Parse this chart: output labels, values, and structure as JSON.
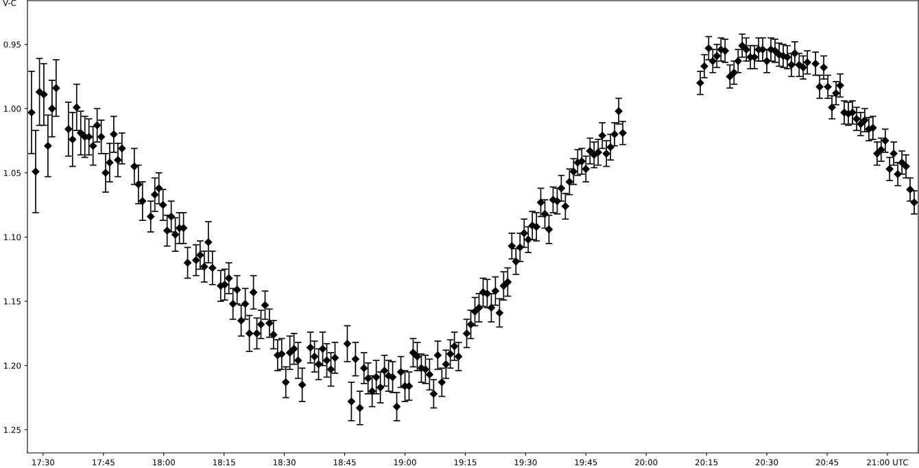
{
  "chart_data": {
    "type": "scatter",
    "ylabel": "V-C",
    "xlim": [
      17.435,
      21.128
    ],
    "ylim": [
      1.268,
      0.916
    ],
    "xticks": [
      {
        "value": 17.5,
        "label": "17:30"
      },
      {
        "value": 17.75,
        "label": "17:45"
      },
      {
        "value": 18.0,
        "label": "18:00"
      },
      {
        "value": 18.25,
        "label": "18:15"
      },
      {
        "value": 18.5,
        "label": "18:30"
      },
      {
        "value": 18.75,
        "label": "18:45"
      },
      {
        "value": 19.0,
        "label": "19:00"
      },
      {
        "value": 19.25,
        "label": "19:15"
      },
      {
        "value": 19.5,
        "label": "19:30"
      },
      {
        "value": 19.75,
        "label": "19:45"
      },
      {
        "value": 20.0,
        "label": "20:00"
      },
      {
        "value": 20.25,
        "label": "20:15"
      },
      {
        "value": 20.5,
        "label": "20:30"
      },
      {
        "value": 20.75,
        "label": "20:45"
      },
      {
        "value": 21.0,
        "label": "21:00 UTC"
      }
    ],
    "yticks": [
      {
        "value": 0.95,
        "label": "0.95"
      },
      {
        "value": 1.0,
        "label": "1.00"
      },
      {
        "value": 1.05,
        "label": "1.05"
      },
      {
        "value": 1.1,
        "label": "1.10"
      },
      {
        "value": 1.15,
        "label": "1.15"
      },
      {
        "value": 1.2,
        "label": "1.20"
      },
      {
        "value": 1.25,
        "label": "1.25"
      }
    ],
    "grid": false,
    "legend": false,
    "marker": "diamond",
    "series": [
      {
        "color": "#000000",
        "x": [
          17.452,
          17.469,
          17.485,
          17.503,
          17.52,
          17.537,
          17.554,
          17.605,
          17.622,
          17.639,
          17.656,
          17.673,
          17.69,
          17.707,
          17.724,
          17.741,
          17.759,
          17.776,
          17.793,
          17.81,
          17.827,
          17.878,
          17.895,
          17.912,
          17.946,
          17.963,
          17.98,
          17.997,
          18.014,
          18.031,
          18.048,
          18.065,
          18.082,
          18.099,
          18.134,
          18.151,
          18.168,
          18.185,
          18.202,
          18.236,
          18.253,
          18.27,
          18.287,
          18.304,
          18.321,
          18.338,
          18.355,
          18.372,
          18.386,
          18.403,
          18.42,
          18.438,
          18.455,
          18.472,
          18.489,
          18.506,
          18.523,
          18.54,
          18.557,
          18.574,
          18.608,
          18.625,
          18.642,
          18.659,
          18.676,
          18.693,
          18.71,
          18.761,
          18.778,
          18.795,
          18.813,
          18.83,
          18.847,
          18.864,
          18.881,
          18.898,
          18.915,
          18.932,
          18.949,
          18.966,
          18.983,
          19.0,
          19.017,
          19.034,
          19.051,
          19.068,
          19.085,
          19.102,
          19.119,
          19.136,
          19.153,
          19.17,
          19.188,
          19.205,
          19.222,
          19.256,
          19.273,
          19.29,
          19.307,
          19.324,
          19.341,
          19.358,
          19.375,
          19.392,
          19.409,
          19.426,
          19.443,
          19.46,
          19.477,
          19.494,
          19.511,
          19.528,
          19.545,
          19.563,
          19.58,
          19.597,
          19.614,
          19.631,
          19.648,
          19.665,
          19.682,
          19.699,
          19.716,
          19.733,
          19.75,
          19.767,
          19.784,
          19.801,
          19.818,
          19.835,
          19.852,
          19.869,
          19.886,
          19.903,
          20.224,
          20.241,
          20.259,
          20.276,
          20.293,
          20.31,
          20.327,
          20.347,
          20.364,
          20.381,
          20.398,
          20.415,
          20.432,
          20.449,
          20.466,
          20.483,
          20.5,
          20.517,
          20.534,
          20.551,
          20.568,
          20.585,
          20.602,
          20.616,
          20.634,
          20.651,
          20.668,
          20.702,
          20.719,
          20.736,
          20.753,
          20.77,
          20.787,
          20.804,
          20.821,
          20.838,
          20.855,
          20.872,
          20.889,
          20.906,
          20.923,
          20.94,
          20.957,
          20.974,
          20.991,
          21.009,
          21.026,
          21.043,
          21.06,
          21.077,
          21.094,
          21.111
        ],
        "values": [
          1.003,
          1.049,
          0.987,
          0.989,
          1.029,
          1.0,
          0.984,
          1.016,
          1.024,
          0.999,
          1.019,
          1.022,
          1.022,
          1.029,
          1.013,
          1.022,
          1.05,
          1.042,
          1.02,
          1.04,
          1.031,
          1.045,
          1.059,
          1.072,
          1.084,
          1.067,
          1.062,
          1.075,
          1.095,
          1.084,
          1.098,
          1.093,
          1.093,
          1.12,
          1.118,
          1.114,
          1.123,
          1.104,
          1.124,
          1.138,
          1.137,
          1.132,
          1.152,
          1.141,
          1.165,
          1.152,
          1.175,
          1.143,
          1.175,
          1.168,
          1.153,
          1.167,
          1.176,
          1.192,
          1.191,
          1.213,
          1.19,
          1.187,
          1.196,
          1.215,
          1.186,
          1.193,
          1.199,
          1.187,
          1.196,
          1.203,
          1.194,
          1.183,
          1.228,
          1.195,
          1.233,
          1.202,
          1.21,
          1.22,
          1.209,
          1.217,
          1.204,
          1.208,
          1.209,
          1.232,
          1.205,
          1.216,
          1.216,
          1.19,
          1.193,
          1.202,
          1.203,
          1.207,
          1.222,
          1.192,
          1.213,
          1.199,
          1.191,
          1.185,
          1.193,
          1.175,
          1.168,
          1.158,
          1.155,
          1.143,
          1.144,
          1.155,
          1.142,
          1.159,
          1.138,
          1.135,
          1.107,
          1.119,
          1.108,
          1.097,
          1.102,
          1.091,
          1.092,
          1.073,
          1.082,
          1.094,
          1.071,
          1.072,
          1.062,
          1.076,
          1.057,
          1.049,
          1.042,
          1.041,
          1.047,
          1.033,
          1.036,
          1.034,
          1.021,
          1.035,
          1.03,
          1.02,
          1.002,
          1.019,
          0.98,
          0.967,
          0.953,
          0.963,
          0.959,
          0.954,
          0.955,
          0.975,
          0.972,
          0.963,
          0.951,
          0.954,
          0.96,
          0.96,
          0.954,
          0.954,
          0.963,
          0.954,
          0.955,
          0.958,
          0.959,
          0.96,
          0.966,
          0.957,
          0.966,
          0.968,
          0.964,
          0.965,
          0.983,
          0.968,
          0.983,
          0.999,
          0.988,
          0.982,
          1.003,
          1.004,
          1.003,
          1.008,
          1.012,
          1.009,
          1.016,
          1.015,
          1.035,
          1.032,
          1.025,
          1.047,
          1.035,
          1.051,
          1.042,
          1.045,
          1.063,
          1.073
        ],
        "errors": [
          0.032,
          0.032,
          0.026,
          0.024,
          0.024,
          0.022,
          0.022,
          0.021,
          0.021,
          0.018,
          0.017,
          0.016,
          0.014,
          0.015,
          0.013,
          0.013,
          0.015,
          0.015,
          0.014,
          0.013,
          0.012,
          0.014,
          0.015,
          0.015,
          0.012,
          0.013,
          0.012,
          0.012,
          0.012,
          0.012,
          0.013,
          0.012,
          0.012,
          0.012,
          0.012,
          0.011,
          0.012,
          0.016,
          0.013,
          0.012,
          0.012,
          0.012,
          0.012,
          0.011,
          0.012,
          0.012,
          0.014,
          0.013,
          0.012,
          0.011,
          0.011,
          0.011,
          0.011,
          0.012,
          0.012,
          0.012,
          0.013,
          0.012,
          0.014,
          0.013,
          0.012,
          0.012,
          0.012,
          0.013,
          0.013,
          0.013,
          0.012,
          0.014,
          0.015,
          0.013,
          0.013,
          0.012,
          0.012,
          0.012,
          0.013,
          0.012,
          0.012,
          0.012,
          0.012,
          0.011,
          0.012,
          0.012,
          0.011,
          0.011,
          0.011,
          0.011,
          0.011,
          0.012,
          0.011,
          0.011,
          0.011,
          0.011,
          0.011,
          0.011,
          0.011,
          0.011,
          0.011,
          0.011,
          0.011,
          0.011,
          0.011,
          0.011,
          0.011,
          0.011,
          0.011,
          0.011,
          0.01,
          0.01,
          0.011,
          0.011,
          0.01,
          0.011,
          0.011,
          0.011,
          0.011,
          0.011,
          0.01,
          0.01,
          0.01,
          0.01,
          0.01,
          0.01,
          0.01,
          0.01,
          0.01,
          0.01,
          0.01,
          0.01,
          0.01,
          0.01,
          0.01,
          0.009,
          0.01,
          0.009,
          0.009,
          0.009,
          0.009,
          0.009,
          0.009,
          0.009,
          0.009,
          0.009,
          0.009,
          0.009,
          0.009,
          0.009,
          0.009,
          0.009,
          0.009,
          0.009,
          0.009,
          0.009,
          0.009,
          0.009,
          0.009,
          0.009,
          0.009,
          0.009,
          0.009,
          0.009,
          0.009,
          0.009,
          0.009,
          0.009,
          0.009,
          0.009,
          0.009,
          0.009,
          0.009,
          0.009,
          0.009,
          0.009,
          0.009,
          0.009,
          0.009,
          0.009,
          0.009,
          0.009,
          0.009,
          0.009,
          0.009,
          0.009,
          0.009,
          0.009,
          0.009,
          0.009
        ]
      }
    ]
  }
}
